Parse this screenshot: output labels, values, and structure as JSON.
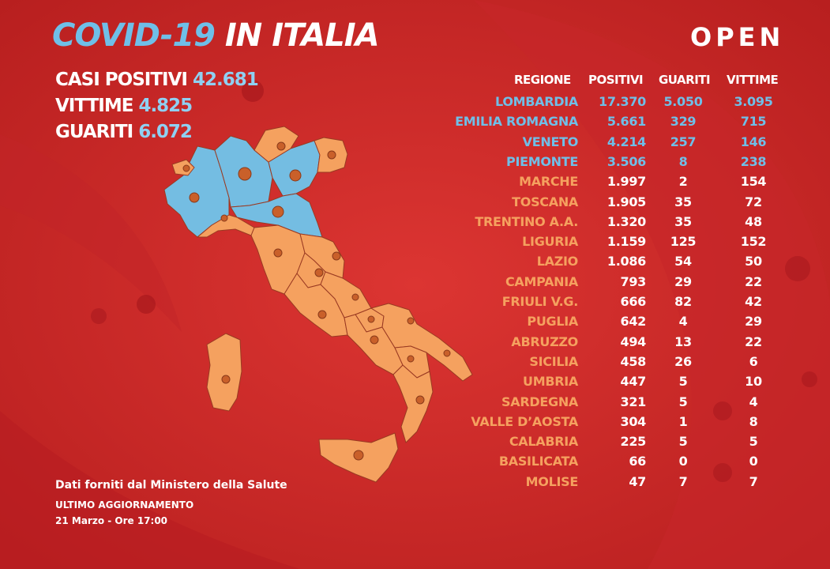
{
  "header": {
    "title_part1": "COVID-19",
    "title_part2": "IN ITALIA",
    "logo": "OPEN"
  },
  "summary": [
    {
      "label": "CASI POSITIVI",
      "value": "42.681"
    },
    {
      "label": "VITTIME",
      "value": "4.825"
    },
    {
      "label": "GUARITI",
      "value": "6.072"
    }
  ],
  "footer": {
    "source": "Dati forniti dal Ministero della Salute",
    "update_label": "ULTIMO AGGIORNAMENTO",
    "update_date": "21 Marzo - Ore 17:00"
  },
  "colors": {
    "background": "#d42d2b",
    "highlight_blue": "#6fbfe8",
    "orange": "#f5a15f",
    "white": "#ffffff"
  },
  "chart_data": {
    "type": "table",
    "columns": [
      "REGIONE",
      "POSITIVI",
      "GUARITI",
      "VITTIME"
    ],
    "rows": [
      {
        "regione": "LOMBARDIA",
        "positivi": "17.370",
        "guariti": "5.050",
        "vittime": "3.095",
        "highlight": true
      },
      {
        "regione": "EMILIA ROMAGNA",
        "positivi": "5.661",
        "guariti": "329",
        "vittime": "715",
        "highlight": true
      },
      {
        "regione": "VENETO",
        "positivi": "4.214",
        "guariti": "257",
        "vittime": "146",
        "highlight": true
      },
      {
        "regione": "PIEMONTE",
        "positivi": "3.506",
        "guariti": "8",
        "vittime": "238",
        "highlight": true
      },
      {
        "regione": "MARCHE",
        "positivi": "1.997",
        "guariti": "2",
        "vittime": "154",
        "highlight": false
      },
      {
        "regione": "TOSCANA",
        "positivi": "1.905",
        "guariti": "35",
        "vittime": "72",
        "highlight": false
      },
      {
        "regione": "TRENTINO A.A.",
        "positivi": "1.320",
        "guariti": "35",
        "vittime": "48",
        "highlight": false
      },
      {
        "regione": "LIGURIA",
        "positivi": "1.159",
        "guariti": "125",
        "vittime": "152",
        "highlight": false
      },
      {
        "regione": "LAZIO",
        "positivi": "1.086",
        "guariti": "54",
        "vittime": "50",
        "highlight": false
      },
      {
        "regione": "CAMPANIA",
        "positivi": "793",
        "guariti": "29",
        "vittime": "22",
        "highlight": false
      },
      {
        "regione": "FRIULI V.G.",
        "positivi": "666",
        "guariti": "82",
        "vittime": "42",
        "highlight": false
      },
      {
        "regione": "PUGLIA",
        "positivi": "642",
        "guariti": "4",
        "vittime": "29",
        "highlight": false
      },
      {
        "regione": "ABRUZZO",
        "positivi": "494",
        "guariti": "13",
        "vittime": "22",
        "highlight": false
      },
      {
        "regione": "SICILIA",
        "positivi": "458",
        "guariti": "26",
        "vittime": "6",
        "highlight": false
      },
      {
        "regione": "UMBRIA",
        "positivi": "447",
        "guariti": "5",
        "vittime": "10",
        "highlight": false
      },
      {
        "regione": "SARDEGNA",
        "positivi": "321",
        "guariti": "5",
        "vittime": "4",
        "highlight": false
      },
      {
        "regione": "VALLE D’AOSTA",
        "positivi": "304",
        "guariti": "1",
        "vittime": "8",
        "highlight": false
      },
      {
        "regione": "CALABRIA",
        "positivi": "225",
        "guariti": "5",
        "vittime": "5",
        "highlight": false
      },
      {
        "regione": "BASILICATA",
        "positivi": "66",
        "guariti": "0",
        "vittime": "0",
        "highlight": false
      },
      {
        "regione": "MOLISE",
        "positivi": "47",
        "guariti": "7",
        "vittime": "7",
        "highlight": false
      }
    ]
  }
}
